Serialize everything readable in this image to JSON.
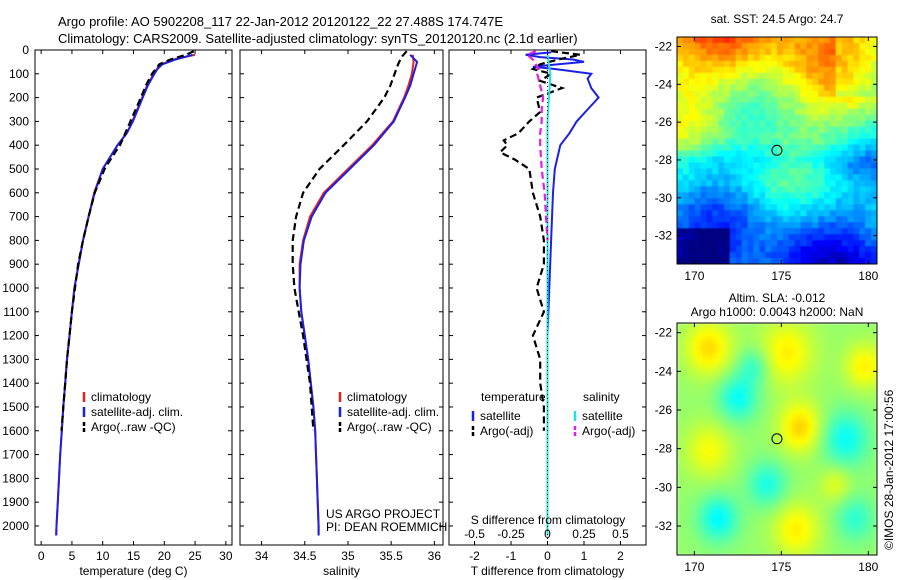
{
  "header": {
    "line1": "Argo profile: AO 5902208_117 22-Jan-2012 20120122_22 27.488S 174.747E",
    "line2": "Climatology: CARS2009. Satellite-adjusted climatology: synTS_20120120.nc (2.1d earlier)"
  },
  "credit": {
    "project": "US ARGO PROJECT",
    "pi": "PI: DEAN ROEMMICH",
    "stamp": "©IMOS 28-Jan-2012 17:00:56"
  },
  "colors": {
    "climatology": "#e8231c",
    "satellite": "#1c20e6",
    "argo": "#000000",
    "sal_satellite": "#21e3e3",
    "sal_argo": "#e61ce6"
  },
  "chart_data": [
    {
      "type": "line",
      "id": "temperature_profile",
      "xlabel": "temperature (deg C)",
      "xlim": [
        -1,
        31
      ],
      "xticks": [
        0,
        5,
        10,
        15,
        20,
        25,
        30
      ],
      "ylim": [
        2080,
        0
      ],
      "yticks": [
        0,
        100,
        200,
        300,
        400,
        500,
        600,
        700,
        800,
        900,
        1000,
        1100,
        1200,
        1300,
        1400,
        1500,
        1600,
        1700,
        1800,
        1900,
        2000
      ],
      "legend": [
        "climatology",
        "satellite-adj. clim.",
        "Argo(..raw -QC)"
      ],
      "legend_placement": "lower-middle",
      "series": [
        {
          "name": "climatology",
          "style": "solid",
          "color": "climatology",
          "depth": [
            20,
            40,
            60,
            80,
            100,
            150,
            200,
            300,
            350,
            400,
            500,
            600,
            700,
            800,
            900,
            1000,
            1100,
            1200,
            1300,
            1400,
            1500,
            1600,
            1700,
            1800,
            1900,
            2000,
            2040
          ],
          "value": [
            25,
            21.5,
            19.5,
            18.8,
            18.3,
            17.2,
            16.4,
            14.8,
            13.9,
            12.4,
            10.0,
            8.6,
            7.7,
            6.8,
            6.1,
            5.4,
            5.0,
            4.6,
            4.2,
            3.9,
            3.6,
            3.35,
            3.1,
            2.9,
            2.7,
            2.5,
            2.45
          ]
        },
        {
          "name": "satellite-adj. clim.",
          "style": "solid",
          "color": "satellite",
          "depth": [
            20,
            40,
            60,
            80,
            100,
            150,
            200,
            300,
            350,
            400,
            500,
            600,
            700,
            800,
            900,
            1000,
            1100,
            1200,
            1300,
            1400,
            1500,
            1600,
            1700,
            1800,
            1900,
            2000,
            2040
          ],
          "value": [
            24.6,
            21.8,
            19.7,
            18.9,
            18.4,
            17.3,
            16.5,
            14.9,
            13.9,
            12.4,
            10.0,
            8.7,
            7.7,
            6.8,
            6.1,
            5.4,
            5.0,
            4.6,
            4.2,
            3.9,
            3.6,
            3.35,
            3.1,
            2.9,
            2.7,
            2.5,
            2.45
          ]
        },
        {
          "name": "Argo(..raw -QC)",
          "style": "dashed",
          "color": "argo",
          "depth": [
            5,
            20,
            40,
            60,
            80,
            100,
            150,
            200,
            300,
            400,
            450,
            500,
            600,
            700,
            800,
            900,
            1000,
            1100,
            1200,
            1300,
            1400,
            1500,
            1600
          ],
          "value": [
            24.8,
            23.5,
            21.0,
            19.2,
            18.6,
            18.0,
            17.0,
            16.2,
            14.5,
            12.8,
            11.5,
            10.3,
            8.7,
            7.7,
            6.8,
            6.0,
            5.5,
            5.0,
            4.6,
            4.2,
            3.9,
            3.6,
            3.3
          ]
        }
      ]
    },
    {
      "type": "line",
      "id": "salinity_profile",
      "xlabel": "salinity",
      "xlim": [
        33.75,
        36.1
      ],
      "xticks": [
        34,
        34.5,
        35,
        35.5,
        36
      ],
      "ylim": [
        2080,
        0
      ],
      "legend": [
        "climatology",
        "satellite-adj. clim.",
        "Argo(..raw -QC)"
      ],
      "legend_placement": "lower-middle",
      "series": [
        {
          "name": "climatology",
          "style": "solid",
          "color": "climatology",
          "depth": [
            20,
            50,
            100,
            150,
            200,
            300,
            400,
            500,
            600,
            700,
            800,
            900,
            1000,
            1100,
            1200,
            1300,
            1400,
            1500,
            1600,
            1700,
            1800,
            1900,
            2000,
            2040
          ],
          "value": [
            35.75,
            35.76,
            35.74,
            35.7,
            35.65,
            35.52,
            35.28,
            35.0,
            34.72,
            34.56,
            34.48,
            34.44,
            34.44,
            34.46,
            34.5,
            34.54,
            34.57,
            34.6,
            34.62,
            34.63,
            34.64,
            34.65,
            34.66,
            34.66
          ]
        },
        {
          "name": "satellite-adj. clim.",
          "style": "solid",
          "color": "satellite",
          "depth": [
            20,
            50,
            100,
            150,
            200,
            300,
            400,
            500,
            600,
            700,
            800,
            900,
            1000,
            1100,
            1200,
            1300,
            1400,
            1500,
            1600,
            1700,
            1800,
            1900,
            2000,
            2040
          ],
          "value": [
            35.72,
            35.8,
            35.76,
            35.72,
            35.66,
            35.53,
            35.3,
            35.02,
            34.74,
            34.58,
            34.49,
            34.45,
            34.44,
            34.46,
            34.5,
            34.54,
            34.57,
            34.6,
            34.62,
            34.63,
            34.64,
            34.65,
            34.66,
            34.66
          ]
        },
        {
          "name": "Argo(..raw -QC)",
          "style": "dashed",
          "color": "argo",
          "depth": [
            5,
            30,
            60,
            100,
            150,
            200,
            300,
            400,
            500,
            600,
            700,
            800,
            900,
            1000,
            1100,
            1200,
            1300,
            1400,
            1500,
            1600
          ],
          "value": [
            35.68,
            35.62,
            35.58,
            35.54,
            35.49,
            35.42,
            35.22,
            34.95,
            34.67,
            34.48,
            34.4,
            34.36,
            34.36,
            34.38,
            34.43,
            34.48,
            34.52,
            34.56,
            34.58,
            34.6
          ]
        }
      ]
    },
    {
      "type": "line",
      "id": "difference_profile",
      "xlabel": "T difference from climatology",
      "xlabel_top": "S difference from climatology",
      "xlim": [
        -2.7,
        2.7
      ],
      "xticks": [
        -2,
        -1,
        0,
        1,
        2
      ],
      "s_ticks": [
        "-0.5",
        "-0.25",
        "0",
        "0.25",
        "0.5"
      ],
      "ylim": [
        2080,
        0
      ],
      "legend_titles": [
        "temperature",
        "salinity"
      ],
      "legend": [
        "satellite",
        "Argo(-adj)",
        "satellite",
        "Argo(-adj)"
      ],
      "legend_placement": "lower-middle",
      "series": [
        {
          "name": "satellite",
          "quantity": "temperature",
          "style": "solid",
          "color": "satellite",
          "depth": [
            10,
            20,
            30,
            40,
            50,
            60,
            70,
            80,
            100,
            120,
            160,
            200,
            250,
            300,
            350,
            400,
            500,
            600,
            800,
            1000,
            1200,
            1500,
            2000
          ],
          "value": [
            0.1,
            -0.6,
            -0.2,
            0.7,
            1.0,
            0.3,
            -0.4,
            0.2,
            1.2,
            1.1,
            1.2,
            1.4,
            1.1,
            0.8,
            0.6,
            0.35,
            0.2,
            0.15,
            0.1,
            0.05,
            0.0,
            0.0,
            0.0
          ]
        },
        {
          "name": "Argo(-adj)",
          "quantity": "temperature",
          "style": "dashed",
          "color": "argo",
          "depth": [
            5,
            20,
            40,
            60,
            80,
            100,
            130,
            160,
            200,
            260,
            300,
            350,
            380,
            400,
            430,
            460,
            500,
            600,
            700,
            800,
            900,
            1000,
            1100,
            1200,
            1300,
            1400,
            1500,
            1600
          ],
          "value": [
            0.1,
            0.9,
            0.3,
            -0.2,
            -0.4,
            0.1,
            -0.2,
            0.4,
            -0.3,
            -0.2,
            -0.5,
            -0.8,
            -1.2,
            -1.1,
            -1.3,
            -0.9,
            -0.5,
            -0.4,
            -0.2,
            -0.1,
            -0.1,
            -0.3,
            -0.1,
            -0.4,
            -0.2,
            -0.2,
            -0.1,
            -0.1
          ]
        },
        {
          "name": "satellite",
          "quantity": "salinity",
          "style": "solid",
          "color": "sal_satellite",
          "depth": [
            20,
            100,
            200,
            300,
            400,
            500,
            700,
            1000,
            1500,
            2000,
            2040
          ],
          "value": [
            0.0,
            0.02,
            0.01,
            0.0,
            0.0,
            0.0,
            0.0,
            0.0,
            0.0,
            0.0,
            0.0
          ]
        },
        {
          "name": "Argo(-adj)",
          "quantity": "salinity",
          "style": "dashed",
          "color": "sal_argo",
          "depth": [
            5,
            20,
            40,
            60,
            80,
            100,
            150,
            200,
            250,
            300,
            350,
            400,
            500,
            600,
            700,
            800
          ],
          "value": [
            -0.08,
            -0.14,
            -0.1,
            -0.08,
            -0.06,
            -0.07,
            -0.05,
            -0.03,
            -0.04,
            -0.04,
            -0.05,
            -0.05,
            -0.04,
            -0.02,
            -0.01,
            0.0
          ]
        }
      ]
    },
    {
      "type": "heatmap",
      "id": "sst_map",
      "title": "sat. SST: 24.5  Argo: 24.7",
      "xlim": [
        169,
        180.5
      ],
      "ylim": [
        -33.5,
        -21.5
      ],
      "xticks": [
        170,
        175,
        180
      ],
      "yticks": [
        -22,
        -24,
        -26,
        -28,
        -30,
        -32
      ],
      "marker": {
        "lon": 174.747,
        "lat": -27.488
      },
      "palette": "jet"
    },
    {
      "type": "heatmap",
      "id": "sla_map",
      "title": "Altim. SLA: -0.012",
      "subtitle": "Argo h1000: 0.0043 h2000: NaN",
      "xlim": [
        169,
        180.5
      ],
      "ylim": [
        -33.5,
        -21.5
      ],
      "xticks": [
        170,
        175,
        180
      ],
      "yticks": [
        -22,
        -24,
        -26,
        -28,
        -30,
        -32
      ],
      "marker": {
        "lon": 174.747,
        "lat": -27.488
      },
      "palette": "jet"
    }
  ]
}
